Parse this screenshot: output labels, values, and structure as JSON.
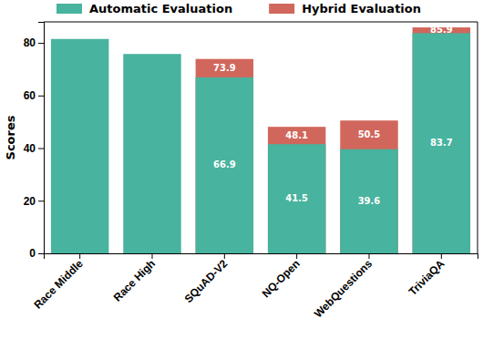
{
  "chart_data": {
    "type": "bar",
    "categories": [
      "Race Middle",
      "Race High",
      "SQuAD-V2",
      "NQ-Open",
      "WebQuestions",
      "TriviaQA"
    ],
    "series": [
      {
        "name": "Automatic Evaluation",
        "color": "#48b39e",
        "values": [
          81.5,
          75.8,
          66.9,
          41.5,
          39.6,
          83.7
        ],
        "value_labels": [
          null,
          null,
          "66.9",
          "41.5",
          "39.6",
          "83.7"
        ]
      },
      {
        "name": "Hybrid Evaluation",
        "color": "#d1675c",
        "values": [
          null,
          null,
          73.9,
          48.1,
          50.5,
          85.9
        ]
      }
    ],
    "y_label": "Scores",
    "ylim": [
      0,
      88
    ],
    "yticks": [
      0,
      20,
      40,
      60,
      80
    ],
    "stacked": false,
    "data_labels": true,
    "grid": false,
    "legend": "top"
  }
}
